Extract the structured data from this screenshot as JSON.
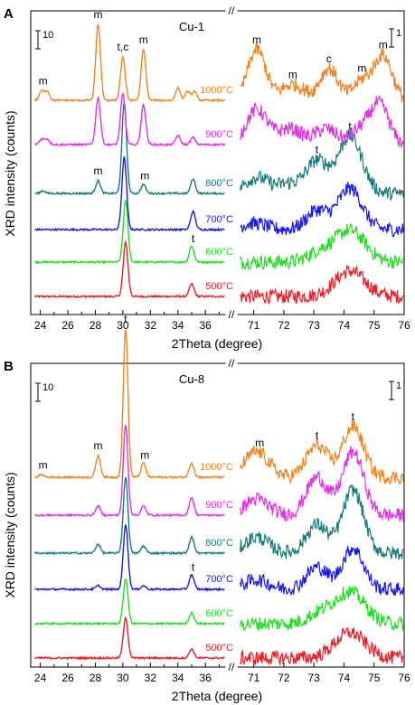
{
  "figure": {
    "ylabel": "XRD intensity (counts)",
    "xlabel": "2Theta (degree)",
    "break_mark": "//"
  },
  "colors": {
    "500": "#ee1c25",
    "600": "#22dd22",
    "700": "#1a1ae6",
    "800": "#197a7a",
    "900": "#e52ee5",
    "1000": "#f58220"
  },
  "chart_data": [
    {
      "type": "line",
      "panel_label": "A",
      "sample": "Cu-1",
      "left_scale_label": "10",
      "right_scale_label": "1",
      "x_left_range": [
        23.5,
        37.5
      ],
      "x_left_ticks": [
        "24",
        "26",
        "28",
        "30",
        "32",
        "34",
        "36"
      ],
      "x_right_range": [
        70.5,
        76
      ],
      "x_right_ticks": [
        "71",
        "72",
        "73",
        "74",
        "75",
        "76"
      ],
      "series": [
        {
          "name": "500°C",
          "temp": "500",
          "left_peaks": [
            [
              30.2,
              30
            ],
            [
              35.0,
              7
            ]
          ],
          "right_peaks": [
            [
              74.2,
              8,
              0.5
            ]
          ]
        },
        {
          "name": "600°C",
          "temp": "600",
          "left_peaks": [
            [
              30.2,
              34
            ],
            [
              35.0,
              9
            ]
          ],
          "right_peaks": [
            [
              73.2,
              3,
              0.4
            ],
            [
              74.2,
              10,
              0.5
            ]
          ]
        },
        {
          "name": "700°C",
          "temp": "700",
          "left_peaks": [
            [
              30.1,
              40
            ],
            [
              35.1,
              10
            ]
          ],
          "right_peaks": [
            [
              71.0,
              2,
              0.4
            ],
            [
              73.1,
              6,
              0.35
            ],
            [
              74.2,
              13,
              0.4
            ]
          ]
        },
        {
          "name": "800°C",
          "temp": "800",
          "left_peaks": [
            [
              24.2,
              1.5
            ],
            [
              28.2,
              7
            ],
            [
              30.1,
              50
            ],
            [
              31.5,
              5
            ],
            [
              35.1,
              8
            ]
          ],
          "right_peaks": [
            [
              71.1,
              5,
              0.4
            ],
            [
              72.2,
              3,
              0.4
            ],
            [
              73.1,
              10,
              0.35
            ],
            [
              74.2,
              18,
              0.4
            ]
          ]
        },
        {
          "name": "900°C",
          "temp": "900",
          "left_peaks": [
            [
              24.1,
              3
            ],
            [
              24.5,
              3
            ],
            [
              28.2,
              26
            ],
            [
              30.0,
              28
            ],
            [
              31.5,
              22
            ],
            [
              34.0,
              5
            ],
            [
              35.1,
              4
            ]
          ],
          "right_peaks": [
            [
              71.1,
              11,
              0.35
            ],
            [
              72.2,
              5,
              0.4
            ],
            [
              73.4,
              5,
              0.35
            ],
            [
              74.6,
              5,
              0.35
            ],
            [
              75.2,
              12,
              0.3
            ]
          ]
        },
        {
          "name": "1000°C",
          "temp": "1000",
          "left_peaks": [
            [
              24.1,
              5
            ],
            [
              24.5,
              5
            ],
            [
              28.2,
              42
            ],
            [
              30.0,
              24
            ],
            [
              31.5,
              28
            ],
            [
              34.0,
              7
            ],
            [
              34.7,
              5
            ],
            [
              35.2,
              5
            ]
          ],
          "right_peaks": [
            [
              71.1,
              16,
              0.3
            ],
            [
              72.3,
              5,
              0.4
            ],
            [
              73.5,
              10,
              0.3
            ],
            [
              74.6,
              6,
              0.3
            ],
            [
              75.3,
              14,
              0.3
            ]
          ]
        }
      ],
      "annotations": [
        {
          "text": "m",
          "axis": "left",
          "x": 24.2,
          "above": "1000"
        },
        {
          "text": "m",
          "axis": "left",
          "x": 28.2,
          "above": "1000"
        },
        {
          "text": "t,c",
          "axis": "left",
          "x": 30.0,
          "above": "1000"
        },
        {
          "text": "m",
          "axis": "left",
          "x": 31.5,
          "above": "1000"
        },
        {
          "text": "m",
          "axis": "left",
          "x": 28.2,
          "above": "800"
        },
        {
          "text": "m",
          "axis": "left",
          "x": 31.6,
          "above": "800"
        },
        {
          "text": "t",
          "axis": "left",
          "x": 35.1,
          "above": "600"
        },
        {
          "text": "m",
          "axis": "right",
          "x": 71.1,
          "above": "1000"
        },
        {
          "text": "m",
          "axis": "right",
          "x": 72.3,
          "above": "1000"
        },
        {
          "text": "c",
          "axis": "right",
          "x": 73.5,
          "above": "1000"
        },
        {
          "text": "m",
          "axis": "right",
          "x": 74.6,
          "above": "1000"
        },
        {
          "text": "m",
          "axis": "right",
          "x": 75.3,
          "above": "1000"
        },
        {
          "text": "t",
          "axis": "right",
          "x": 73.1,
          "above": "800"
        },
        {
          "text": "t",
          "axis": "right",
          "x": 74.2,
          "above": "800"
        }
      ]
    },
    {
      "type": "line",
      "panel_label": "B",
      "sample": "Cu-8",
      "left_scale_label": "10",
      "right_scale_label": "1",
      "x_left_range": [
        23.5,
        37.5
      ],
      "x_left_ticks": [
        "24",
        "26",
        "28",
        "30",
        "32",
        "34",
        "36"
      ],
      "x_right_range": [
        70.5,
        76
      ],
      "x_right_ticks": [
        "71",
        "72",
        "73",
        "74",
        "75",
        "76"
      ],
      "series": [
        {
          "name": "500°C",
          "temp": "500",
          "left_peaks": [
            [
              30.2,
              22
            ],
            [
              35.0,
              5
            ]
          ],
          "right_peaks": [
            [
              74.2,
              8,
              0.5
            ]
          ]
        },
        {
          "name": "600°C",
          "temp": "600",
          "left_peaks": [
            [
              30.2,
              25
            ],
            [
              35.0,
              6
            ]
          ],
          "right_peaks": [
            [
              73.2,
              3,
              0.4
            ],
            [
              74.2,
              10,
              0.5
            ]
          ]
        },
        {
          "name": "700°C",
          "temp": "700",
          "left_peaks": [
            [
              28.2,
              2
            ],
            [
              30.2,
              36
            ],
            [
              31.5,
              2
            ],
            [
              35.0,
              8
            ]
          ],
          "right_peaks": [
            [
              71.1,
              3,
              0.4
            ],
            [
              73.1,
              7,
              0.35
            ],
            [
              74.3,
              13,
              0.35
            ]
          ]
        },
        {
          "name": "800°C",
          "temp": "800",
          "left_peaks": [
            [
              28.2,
              5
            ],
            [
              30.2,
              42
            ],
            [
              31.5,
              4
            ],
            [
              35.0,
              9
            ]
          ],
          "right_peaks": [
            [
              71.1,
              5,
              0.4
            ],
            [
              73.1,
              9,
              0.35
            ],
            [
              74.3,
              20,
              0.35
            ]
          ]
        },
        {
          "name": "900°C",
          "temp": "900",
          "left_peaks": [
            [
              28.2,
              5
            ],
            [
              30.2,
              50
            ],
            [
              31.5,
              5
            ],
            [
              35.0,
              10
            ]
          ],
          "right_peaks": [
            [
              71.1,
              5,
              0.4
            ],
            [
              73.1,
              12,
              0.35
            ],
            [
              74.3,
              20,
              0.35
            ]
          ]
        },
        {
          "name": "1000°C",
          "temp": "1000",
          "left_peaks": [
            [
              24.1,
              1.5
            ],
            [
              28.2,
              12
            ],
            [
              30.2,
              82
            ],
            [
              31.5,
              8
            ],
            [
              35.0,
              8
            ]
          ],
          "right_peaks": [
            [
              71.1,
              8,
              0.4
            ],
            [
              73.1,
              10,
              0.35
            ],
            [
              74.3,
              16,
              0.35
            ]
          ]
        }
      ],
      "annotations": [
        {
          "text": "m",
          "axis": "left",
          "x": 24.2,
          "above": "1000"
        },
        {
          "text": "m",
          "axis": "left",
          "x": 28.2,
          "above": "1000"
        },
        {
          "text": "t",
          "axis": "left",
          "x": 30.2,
          "above": "1000"
        },
        {
          "text": "m",
          "axis": "left",
          "x": 31.6,
          "above": "1000"
        },
        {
          "text": "t",
          "axis": "left",
          "x": 35.1,
          "above": "700"
        },
        {
          "text": "m",
          "axis": "right",
          "x": 71.2,
          "above": "1000"
        },
        {
          "text": "t",
          "axis": "right",
          "x": 73.1,
          "above": "1000"
        },
        {
          "text": "t",
          "axis": "right",
          "x": 74.3,
          "above": "1000"
        }
      ]
    }
  ]
}
